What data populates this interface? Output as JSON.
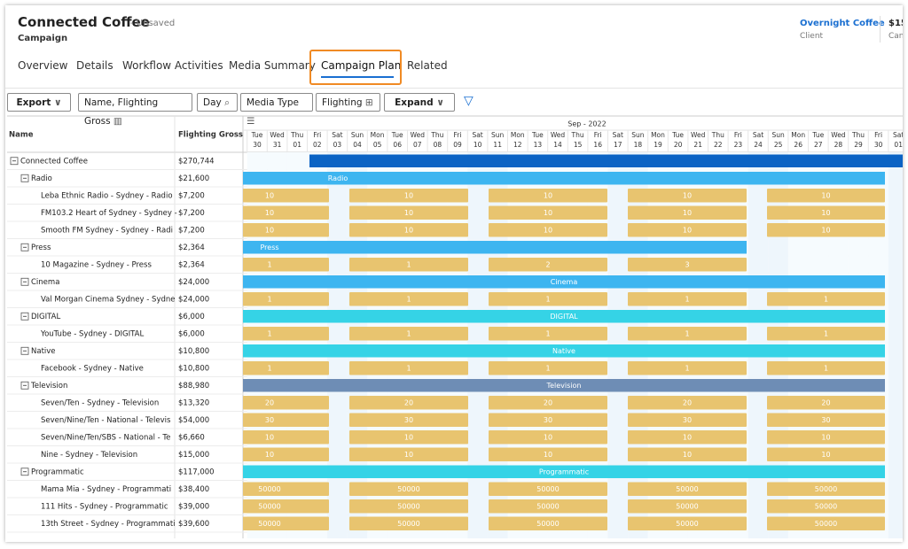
{
  "header": {
    "title": "Connected Coffee",
    "status": "- Unsaved",
    "subtitle": "Campaign",
    "client_name": "Overnight Coffee",
    "client_label": "Client",
    "amount": "$15",
    "amount_label": "Can"
  },
  "tabs": [
    "Overview",
    "Details",
    "Workflow Activities",
    "Media Summary",
    "Campaign Plan",
    "Related"
  ],
  "active_tab": 4,
  "toolbar": [
    "Export",
    "Name, Flighting Gross",
    "Day",
    "Media Type",
    "Flighting",
    "Expand"
  ],
  "grid": {
    "columns": [
      "Name",
      "Flighting Gross"
    ],
    "month": "Sep - 2022",
    "days": [
      {
        "day": "Tue",
        "date": "30"
      },
      {
        "day": "Wed",
        "date": "31"
      },
      {
        "day": "Thu",
        "date": "01"
      },
      {
        "day": "Fri",
        "date": "02"
      },
      {
        "day": "Sat",
        "date": "03"
      },
      {
        "day": "Sun",
        "date": "04"
      },
      {
        "day": "Mon",
        "date": "05"
      },
      {
        "day": "Tue",
        "date": "06"
      },
      {
        "day": "Wed",
        "date": "07"
      },
      {
        "day": "Thu",
        "date": "08"
      },
      {
        "day": "Fri",
        "date": "09"
      },
      {
        "day": "Sat",
        "date": "10"
      },
      {
        "day": "Sun",
        "date": "11"
      },
      {
        "day": "Mon",
        "date": "12"
      },
      {
        "day": "Tue",
        "date": "13"
      },
      {
        "day": "Wed",
        "date": "14"
      },
      {
        "day": "Thu",
        "date": "15"
      },
      {
        "day": "Fri",
        "date": "16"
      },
      {
        "day": "Sat",
        "date": "17"
      },
      {
        "day": "Sun",
        "date": "18"
      },
      {
        "day": "Mon",
        "date": "19"
      },
      {
        "day": "Tue",
        "date": "20"
      },
      {
        "day": "Wed",
        "date": "21"
      },
      {
        "day": "Thu",
        "date": "22"
      },
      {
        "day": "Fri",
        "date": "23"
      },
      {
        "day": "Sat",
        "date": "24"
      },
      {
        "day": "Sun",
        "date": "25"
      },
      {
        "day": "Mon",
        "date": "26"
      },
      {
        "day": "Tue",
        "date": "27"
      },
      {
        "day": "Wed",
        "date": "28"
      },
      {
        "day": "Thu",
        "date": "29"
      },
      {
        "day": "Fri",
        "date": "30"
      },
      {
        "day": "Sat",
        "date": "01"
      }
    ],
    "total": {
      "name": "Connected Coffee",
      "gross": "$270,744",
      "color": "#0b63c4"
    },
    "groups": [
      {
        "name": "Radio",
        "gross": "$21,600",
        "color": "#3db5f0",
        "items": [
          {
            "name": "Leba Ethnic Radio - Sydney - Radio",
            "gross": "$7,200",
            "segments": [
              10,
              10,
              10,
              10,
              10
            ]
          },
          {
            "name": "FM103.2 Heart of Sydney - Sydney -",
            "gross": "$7,200",
            "segments": [
              10,
              10,
              10,
              10,
              10
            ]
          },
          {
            "name": "Smooth FM Sydney - Sydney - Radi",
            "gross": "$7,200",
            "segments": [
              10,
              10,
              10,
              10,
              10
            ]
          }
        ]
      },
      {
        "name": "Press",
        "gross": "$2,364",
        "color": "#3db5f0",
        "items": [
          {
            "name": "10 Magazine - Sydney - Press",
            "gross": "$2,364",
            "segments": [
              1,
              1,
              2,
              3
            ]
          }
        ]
      },
      {
        "name": "Cinema",
        "gross": "$24,000",
        "color": "#3db5f0",
        "items": [
          {
            "name": "Val Morgan Cinema Sydney - Sydne",
            "gross": "$24,000",
            "segments": [
              1,
              1,
              1,
              1,
              1
            ]
          }
        ]
      },
      {
        "name": "DIGITAL",
        "gross": "$6,000",
        "color": "#35d3e6",
        "items": [
          {
            "name": "YouTube - Sydney - DIGITAL",
            "gross": "$6,000",
            "segments": [
              1,
              1,
              1,
              1,
              1
            ]
          }
        ]
      },
      {
        "name": "Native",
        "gross": "$10,800",
        "color": "#35d3e6",
        "items": [
          {
            "name": "Facebook - Sydney - Native",
            "gross": "$10,800",
            "segments": [
              1,
              1,
              1,
              1,
              1
            ]
          }
        ]
      },
      {
        "name": "Television",
        "gross": "$88,980",
        "color": "#6e8db5",
        "items": [
          {
            "name": "Seven/Ten - Sydney - Television",
            "gross": "$13,320",
            "segments": [
              20,
              20,
              20,
              20,
              20
            ]
          },
          {
            "name": "Seven/Nine/Ten - National - Televis",
            "gross": "$54,000",
            "segments": [
              30,
              30,
              30,
              30,
              30
            ]
          },
          {
            "name": "Seven/Nine/Ten/SBS - National - Te",
            "gross": "$6,660",
            "segments": [
              10,
              10,
              10,
              10,
              10
            ]
          },
          {
            "name": "Nine - Sydney - Television",
            "gross": "$15,000",
            "segments": [
              10,
              10,
              10,
              10,
              10
            ]
          }
        ]
      },
      {
        "name": "Programmatic",
        "gross": "$117,000",
        "color": "#35d3e6",
        "items": [
          {
            "name": "Mama Mia - Sydney - Programmati",
            "gross": "$38,400",
            "segments": [
              50000,
              50000,
              50000,
              50000,
              50000
            ]
          },
          {
            "name": "111 Hits - Sydney - Programmatic",
            "gross": "$39,000",
            "segments": [
              50000,
              50000,
              50000,
              50000,
              50000
            ]
          },
          {
            "name": "13th Street - Sydney - Programmati",
            "gross": "$39,600",
            "segments": [
              50000,
              50000,
              50000,
              50000,
              50000
            ]
          }
        ]
      }
    ]
  }
}
